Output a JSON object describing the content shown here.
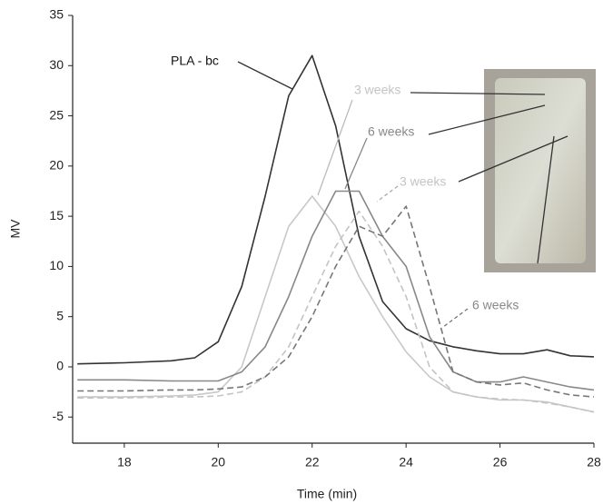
{
  "chart_data": {
    "type": "line",
    "x_label": "Time (min)",
    "y_label": "MV",
    "x": [
      17,
      18,
      19,
      19.5,
      20,
      20.5,
      21,
      21.5,
      22,
      22.5,
      23,
      23.5,
      24,
      24.5,
      25,
      25.5,
      26,
      26.5,
      27,
      27.5,
      28
    ],
    "series": [
      {
        "name": "PLA - bc",
        "color": "#333333",
        "dashed": false,
        "values": [
          0.3,
          0.4,
          0.6,
          0.9,
          2.5,
          8,
          17,
          27,
          31,
          24,
          13,
          6.5,
          3.8,
          2.6,
          2,
          1.6,
          1.3,
          1.3,
          1.7,
          1.1,
          1.0
        ]
      },
      {
        "name": "3 weeks",
        "color": "#c8c8c8",
        "dashed": false,
        "values": [
          -3,
          -3,
          -2.9,
          -2.8,
          -2.5,
          0,
          7,
          14,
          17,
          14,
          9,
          5,
          1.5,
          -1,
          -2.5,
          -3,
          -3.3,
          -3.3,
          -3.5,
          -4,
          -4.5
        ]
      },
      {
        "name": "6 weeks",
        "color": "#888888",
        "dashed": false,
        "values": [
          -1.3,
          -1.3,
          -1.4,
          -1.4,
          -1.4,
          -0.5,
          2,
          7,
          13,
          17.5,
          17.5,
          13,
          10,
          3,
          -0.5,
          -1.5,
          -1.5,
          -1.0,
          -1.5,
          -2,
          -2.3
        ]
      },
      {
        "name": "3 weeks",
        "color": "#c4c4c4",
        "dashed": true,
        "values": [
          -3.1,
          -3.1,
          -3.0,
          -3.0,
          -2.9,
          -2.5,
          -1,
          2,
          7,
          12,
          15.5,
          12,
          7,
          0,
          -2.5,
          -3,
          -3.2,
          -3.3,
          -3.6,
          -4,
          -4.5
        ]
      },
      {
        "name": "6 weeks",
        "color": "#777777",
        "dashed": true,
        "values": [
          -2.4,
          -2.4,
          -2.3,
          -2.3,
          -2.2,
          -2,
          -1,
          1,
          5,
          10,
          14,
          13,
          16,
          8,
          -0.5,
          -1.5,
          -1.8,
          -1.6,
          -2.3,
          -2.8,
          -3
        ]
      }
    ],
    "xlim": [
      16.9,
      28
    ],
    "ylim": [
      -7.6,
      35
    ],
    "xticks": [
      18,
      20,
      22,
      24,
      26,
      28
    ],
    "yticks": [
      -5,
      0,
      5,
      10,
      15,
      20,
      25,
      30,
      35
    ]
  }
}
